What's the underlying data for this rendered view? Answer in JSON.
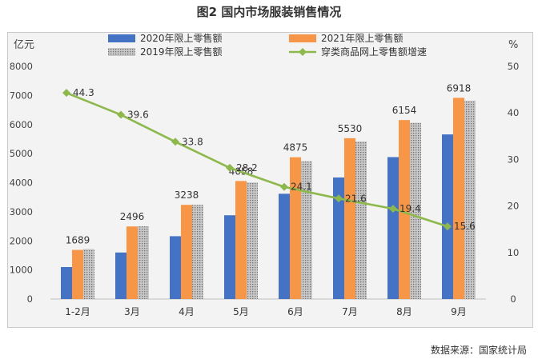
{
  "title": "图2 国内市场服装销售情况",
  "source": "数据来源：国家统计局",
  "colors": {
    "series_2020": "#4472c4",
    "series_2021": "#f79646",
    "series_2019": "#a6a6a6",
    "growth_line": "#8db84a"
  },
  "chart_data": {
    "type": "bar",
    "categories": [
      "1-2月",
      "3月",
      "4月",
      "5月",
      "6月",
      "7月",
      "8月",
      "9月"
    ],
    "ylabel": "亿元",
    "ylim": [
      0,
      8000
    ],
    "yticks": [
      0,
      1000,
      2000,
      3000,
      4000,
      5000,
      6000,
      7000,
      8000
    ],
    "y2label": "%",
    "y2lim": [
      0,
      50
    ],
    "y2ticks": [
      0,
      10,
      20,
      30,
      40,
      50
    ],
    "grid": false,
    "legend_position": "top",
    "series": [
      {
        "name": "2020年限上零售额",
        "type": "bar",
        "axis": "left",
        "values": [
          1100,
          1600,
          2160,
          2880,
          3620,
          4180,
          4880,
          5660
        ]
      },
      {
        "name": "2021年限上零售额",
        "type": "bar",
        "axis": "left",
        "values": [
          1689,
          2496,
          3238,
          4058,
          4875,
          5530,
          6154,
          6918
        ],
        "labels": [
          "1689",
          "2496",
          "3238",
          "4058",
          "4875",
          "5530",
          "6154",
          "6918"
        ]
      },
      {
        "name": "2019年限上零售额",
        "type": "bar",
        "axis": "left",
        "values": [
          1720,
          2500,
          3240,
          4010,
          4740,
          5420,
          6060,
          6820
        ]
      },
      {
        "name": "穿类商品网上零售额增速",
        "type": "line",
        "axis": "right",
        "values": [
          44.3,
          39.6,
          33.8,
          28.2,
          24.1,
          21.6,
          19.4,
          15.6
        ],
        "labels": [
          "44.3",
          "39.6",
          "33.8",
          "28.2",
          "24.1",
          "21.6",
          "19.4",
          "15.6"
        ]
      }
    ]
  }
}
